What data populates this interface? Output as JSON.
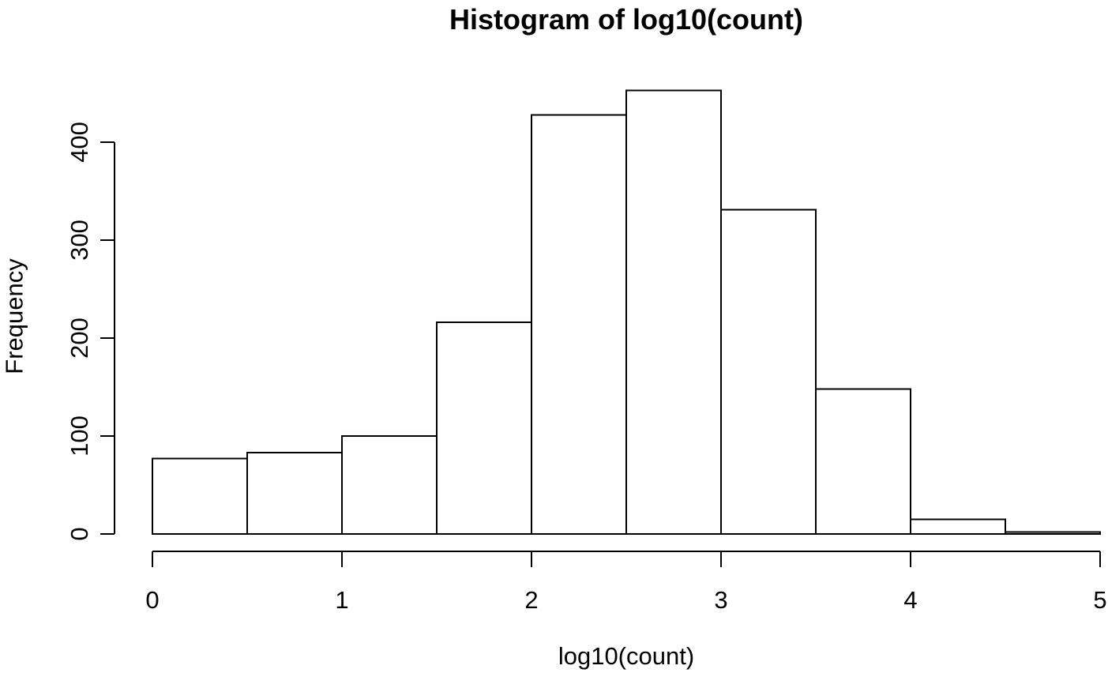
{
  "chart_data": {
    "type": "bar",
    "variant": "histogram",
    "title": "Histogram of log10(count)",
    "xlabel": "log10(count)",
    "ylabel": "Frequency",
    "breaks": [
      0,
      0.5,
      1,
      1.5,
      2,
      2.5,
      3,
      3.5,
      4,
      4.5,
      5
    ],
    "counts": [
      77,
      83,
      100,
      216,
      428,
      453,
      331,
      148,
      15,
      2
    ],
    "x_ticks": [
      0,
      1,
      2,
      3,
      4,
      5
    ],
    "y_ticks": [
      0,
      100,
      200,
      300,
      400
    ],
    "xlim": [
      0,
      5
    ],
    "ylim": [
      0,
      453
    ],
    "grid": "off",
    "legend": "none",
    "colors": {
      "bar_fill": "#ffffff",
      "bar_stroke": "#000000",
      "axis": "#000000",
      "text": "#000000",
      "background": "#ffffff"
    }
  }
}
